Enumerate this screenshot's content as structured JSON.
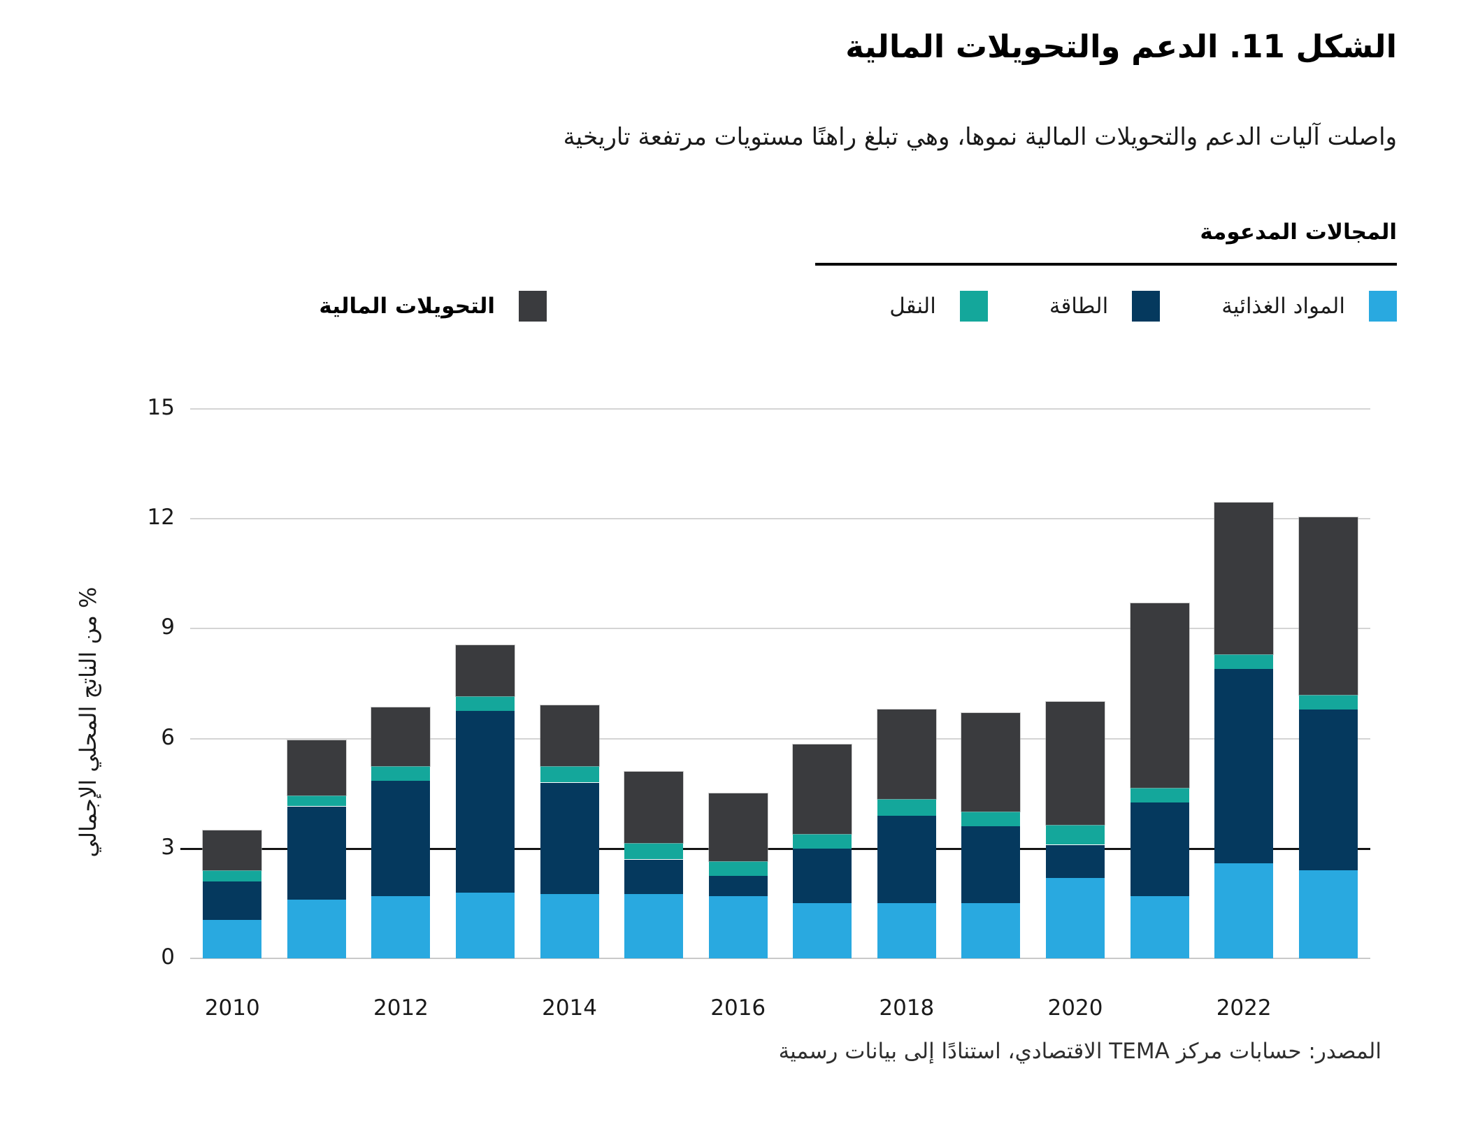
{
  "header": {
    "title": "الشكل 11. الدعم والتحويلات المالية",
    "subtitle": "واصلت آليات الدعم والتحويلات المالية نموها، وهي تبلغ راهنًا مستويات مرتفعة تاريخية"
  },
  "legend": {
    "group_title": "المجالات المدعومة",
    "items": [
      {
        "key": "food",
        "label": "المواد الغذائية",
        "color": "#29A9E0"
      },
      {
        "key": "energy",
        "label": "الطاقة",
        "color": "#05395E"
      },
      {
        "key": "transport",
        "label": "النقل",
        "color": "#14A79B"
      }
    ],
    "transfers": {
      "key": "transfers",
      "label": "التحويلات المالية",
      "color": "#3A3B3E"
    }
  },
  "source": "المصدر: حسابات مركز TEMA الاقتصادي، استنادًا إلى بيانات رسمية",
  "chart_data": {
    "type": "bar",
    "stacked": true,
    "categories": [
      "2010",
      "2011",
      "2012",
      "2013",
      "2014",
      "2015",
      "2016",
      "2017",
      "2018",
      "2019",
      "2020",
      "2021",
      "2022",
      "2023"
    ],
    "visible_x_tick_labels": [
      "2010",
      "2012",
      "2014",
      "2016",
      "2018",
      "2020",
      "2022"
    ],
    "series": [
      {
        "name": "المواد الغذائية",
        "color": "#29A9E0",
        "values": [
          1.05,
          1.6,
          1.7,
          1.8,
          1.75,
          1.75,
          1.7,
          1.5,
          1.5,
          1.5,
          2.2,
          1.7,
          2.6,
          2.4
        ]
      },
      {
        "name": "الطاقة",
        "color": "#05395E",
        "values": [
          1.05,
          2.55,
          3.15,
          4.95,
          3.05,
          0.95,
          0.55,
          1.5,
          2.4,
          2.1,
          0.9,
          2.55,
          5.3,
          4.4
        ]
      },
      {
        "name": "النقل",
        "color": "#14A79B",
        "values": [
          0.3,
          0.3,
          0.4,
          0.4,
          0.45,
          0.45,
          0.4,
          0.4,
          0.45,
          0.4,
          0.55,
          0.4,
          0.4,
          0.4
        ]
      },
      {
        "name": "التحويلات المالية",
        "color": "#3A3B3E",
        "values": [
          1.1,
          1.5,
          1.6,
          1.4,
          1.65,
          1.95,
          1.85,
          2.45,
          2.45,
          2.7,
          3.35,
          5.05,
          4.15,
          4.85
        ]
      }
    ],
    "totals": [
      3.5,
      5.95,
      6.85,
      8.55,
      6.9,
      5.1,
      4.5,
      5.85,
      6.8,
      6.7,
      7.0,
      9.7,
      12.45,
      12.05
    ],
    "ylabel": "% من الناتج المحلي الإجمالي",
    "ylim": [
      0,
      15
    ],
    "yticks": [
      0,
      3,
      6,
      9,
      12,
      15
    ],
    "highlighted_gridline": 3,
    "grid": "horizontal",
    "legend_position": "top"
  }
}
